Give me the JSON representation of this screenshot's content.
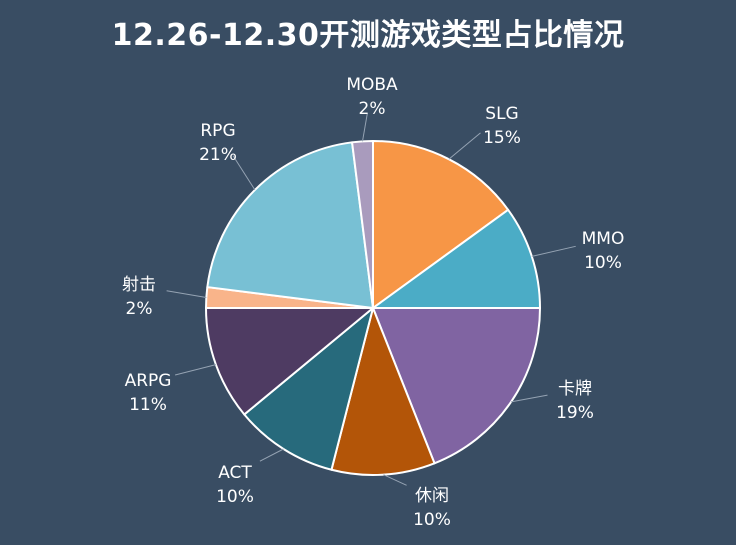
{
  "chart_data": {
    "type": "pie",
    "title": "12.26-12.30开测游戏类型占比情况",
    "start_angle_deg": 0,
    "direction": "clockwise",
    "slices": [
      {
        "name": "SLG",
        "value": 15,
        "label": "15%",
        "color": "#f79646"
      },
      {
        "name": "MMO",
        "value": 10,
        "label": "10%",
        "color": "#4bacc6"
      },
      {
        "name": "卡牌",
        "value": 19,
        "label": "19%",
        "color": "#8064a2"
      },
      {
        "name": "休闲",
        "value": 10,
        "label": "10%",
        "color": "#b35508"
      },
      {
        "name": "ACT",
        "value": 10,
        "label": "10%",
        "color": "#276a7c"
      },
      {
        "name": "ARPG",
        "value": 11,
        "label": "11%",
        "color": "#4e3b62"
      },
      {
        "name": "射击",
        "value": 2,
        "label": "2%",
        "color": "#f9b48a"
      },
      {
        "name": "RPG",
        "value": 21,
        "label": "21%",
        "color": "#78c0d4"
      },
      {
        "name": "MOBA",
        "value": 2,
        "label": "2%",
        "color": "#a99bbd"
      }
    ]
  }
}
